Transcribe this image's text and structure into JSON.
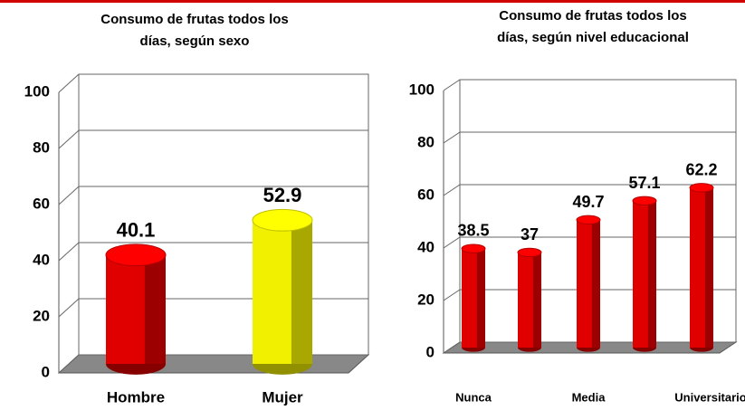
{
  "chart_data": [
    {
      "type": "bar",
      "title": [
        "Consumo de frutas todos los",
        "días, según sexo"
      ],
      "categories": [
        "Hombre",
        "Mujer"
      ],
      "values": [
        40.1,
        52.9
      ],
      "series_colors": [
        "#e00000",
        "#f0f000"
      ],
      "ylim": [
        0,
        100
      ],
      "yticks": [
        0,
        20,
        40,
        60,
        80,
        100
      ],
      "grid": true
    },
    {
      "type": "bar",
      "title": [
        "Consumo de frutas todos los",
        "días, según nivel educacional"
      ],
      "categories": [
        "Nunca",
        null,
        "Media",
        null,
        "Universitario"
      ],
      "values": [
        38.5,
        37,
        49.7,
        57.1,
        62.2
      ],
      "series_colors": [
        "#e00000",
        "#e00000",
        "#e00000",
        "#e00000",
        "#e00000"
      ],
      "ylim": [
        0,
        100
      ],
      "yticks": [
        0,
        20,
        40,
        60,
        80,
        100
      ],
      "grid": true
    }
  ]
}
